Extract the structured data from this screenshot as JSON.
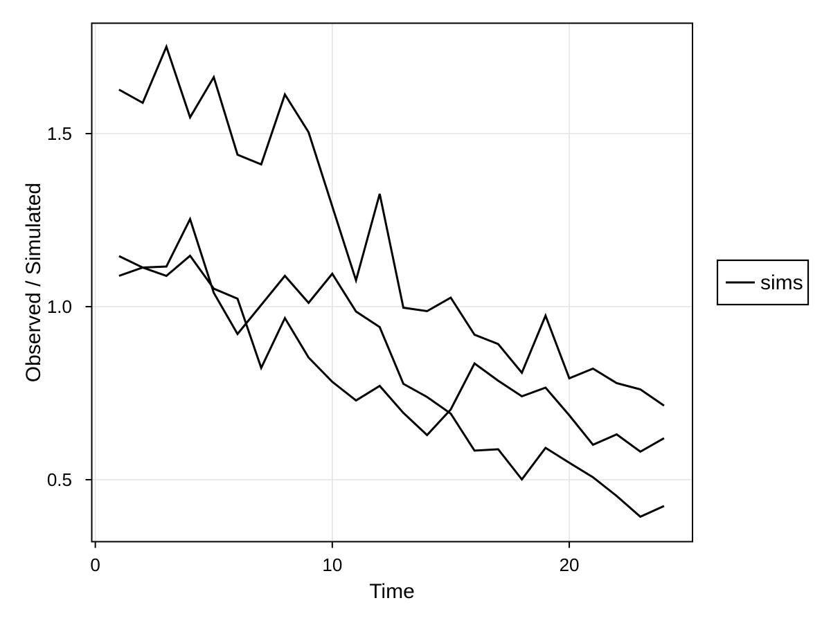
{
  "chart_data": {
    "type": "line",
    "title": "",
    "xlabel": "Time",
    "ylabel": "Observed / Simulated",
    "x": [
      1,
      2,
      3,
      4,
      5,
      6,
      7,
      8,
      9,
      10,
      11,
      12,
      13,
      14,
      15,
      16,
      17,
      18,
      19,
      20,
      21,
      22,
      23,
      24
    ],
    "series": [
      {
        "name": "sims",
        "values": [
          1.627,
          1.589,
          1.751,
          1.547,
          1.663,
          1.439,
          1.411,
          1.613,
          1.504,
          1.29,
          1.076,
          1.326,
          0.997,
          0.987,
          1.026,
          0.919,
          0.892,
          0.809,
          0.974,
          0.793,
          0.821,
          0.779,
          0.761,
          0.714
        ]
      },
      {
        "name": "sims",
        "values": [
          1.146,
          1.113,
          1.089,
          1.147,
          1.052,
          1.023,
          0.823,
          0.967,
          0.853,
          0.783,
          0.729,
          0.771,
          0.693,
          0.629,
          0.703,
          0.836,
          0.786,
          0.741,
          0.766,
          0.686,
          0.601,
          0.631,
          0.581,
          0.62
        ]
      },
      {
        "name": "sims",
        "values": [
          1.089,
          1.113,
          1.116,
          1.253,
          1.04,
          0.921,
          1.005,
          1.089,
          1.011,
          1.095,
          0.986,
          0.941,
          0.777,
          0.739,
          0.691,
          0.584,
          0.588,
          0.501,
          0.592,
          0.549,
          0.507,
          0.453,
          0.393,
          0.424
        ]
      }
    ],
    "x_ticks": [
      0,
      10,
      20
    ],
    "x_tick_labels": [
      "0",
      "10",
      "20"
    ],
    "y_ticks": [
      0.5,
      1.0,
      1.5
    ],
    "y_tick_labels": [
      "0.5",
      "1.0",
      "1.5"
    ],
    "xlim": [
      -0.15,
      25.2
    ],
    "ylim": [
      0.321,
      1.819
    ],
    "grid": true,
    "legend": {
      "position": "right",
      "entries": [
        {
          "label": "sims",
          "color": "#000000"
        }
      ]
    },
    "colors": {
      "line": "#000000",
      "grid": "#E4E4E4",
      "panel_border": "#000000",
      "background": "#FFFFFF",
      "text": "#000000"
    }
  }
}
